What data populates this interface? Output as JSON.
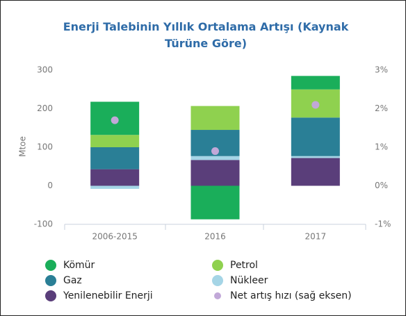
{
  "chart_data": {
    "type": "bar",
    "stacked": true,
    "title": "Enerji Talebinin Yıllık Ortalama Artışı (Kaynak Türüne Göre)",
    "y_label": "Mtoe",
    "categories": [
      "2006-2015",
      "2016",
      "2017"
    ],
    "series": [
      {
        "name": "Kömür",
        "color": "#1aae5a",
        "values": [
          86,
          -87,
          35
        ]
      },
      {
        "name": "Petrol",
        "color": "#8fd14f",
        "values": [
          32,
          62,
          73
        ]
      },
      {
        "name": "Gaz",
        "color": "#2a7f96",
        "values": [
          57,
          68,
          100
        ]
      },
      {
        "name": "Nükleer",
        "color": "#a5d5e6",
        "values": [
          -8,
          10,
          5
        ]
      },
      {
        "name": "Yenilenebilir Enerji",
        "color": "#5a3e7a",
        "values": [
          43,
          67,
          72
        ]
      },
      {
        "name": "Net artış hızı (sağ eksen)",
        "color": "#c1a8d8",
        "type": "scatter",
        "axis": "y2",
        "values": [
          1.7,
          0.9,
          2.1
        ]
      }
    ],
    "ylim": [
      -100,
      300
    ],
    "yticks": [
      -100,
      0,
      100,
      200,
      300
    ],
    "y2lim": [
      -1,
      3
    ],
    "y2ticks": [
      {
        "value": -1,
        "label": "-1%"
      },
      {
        "value": 0,
        "label": "0%"
      },
      {
        "value": 1,
        "label": "1%"
      },
      {
        "value": 2,
        "label": "2%"
      },
      {
        "value": 3,
        "label": "3%"
      }
    ],
    "grid": false
  }
}
